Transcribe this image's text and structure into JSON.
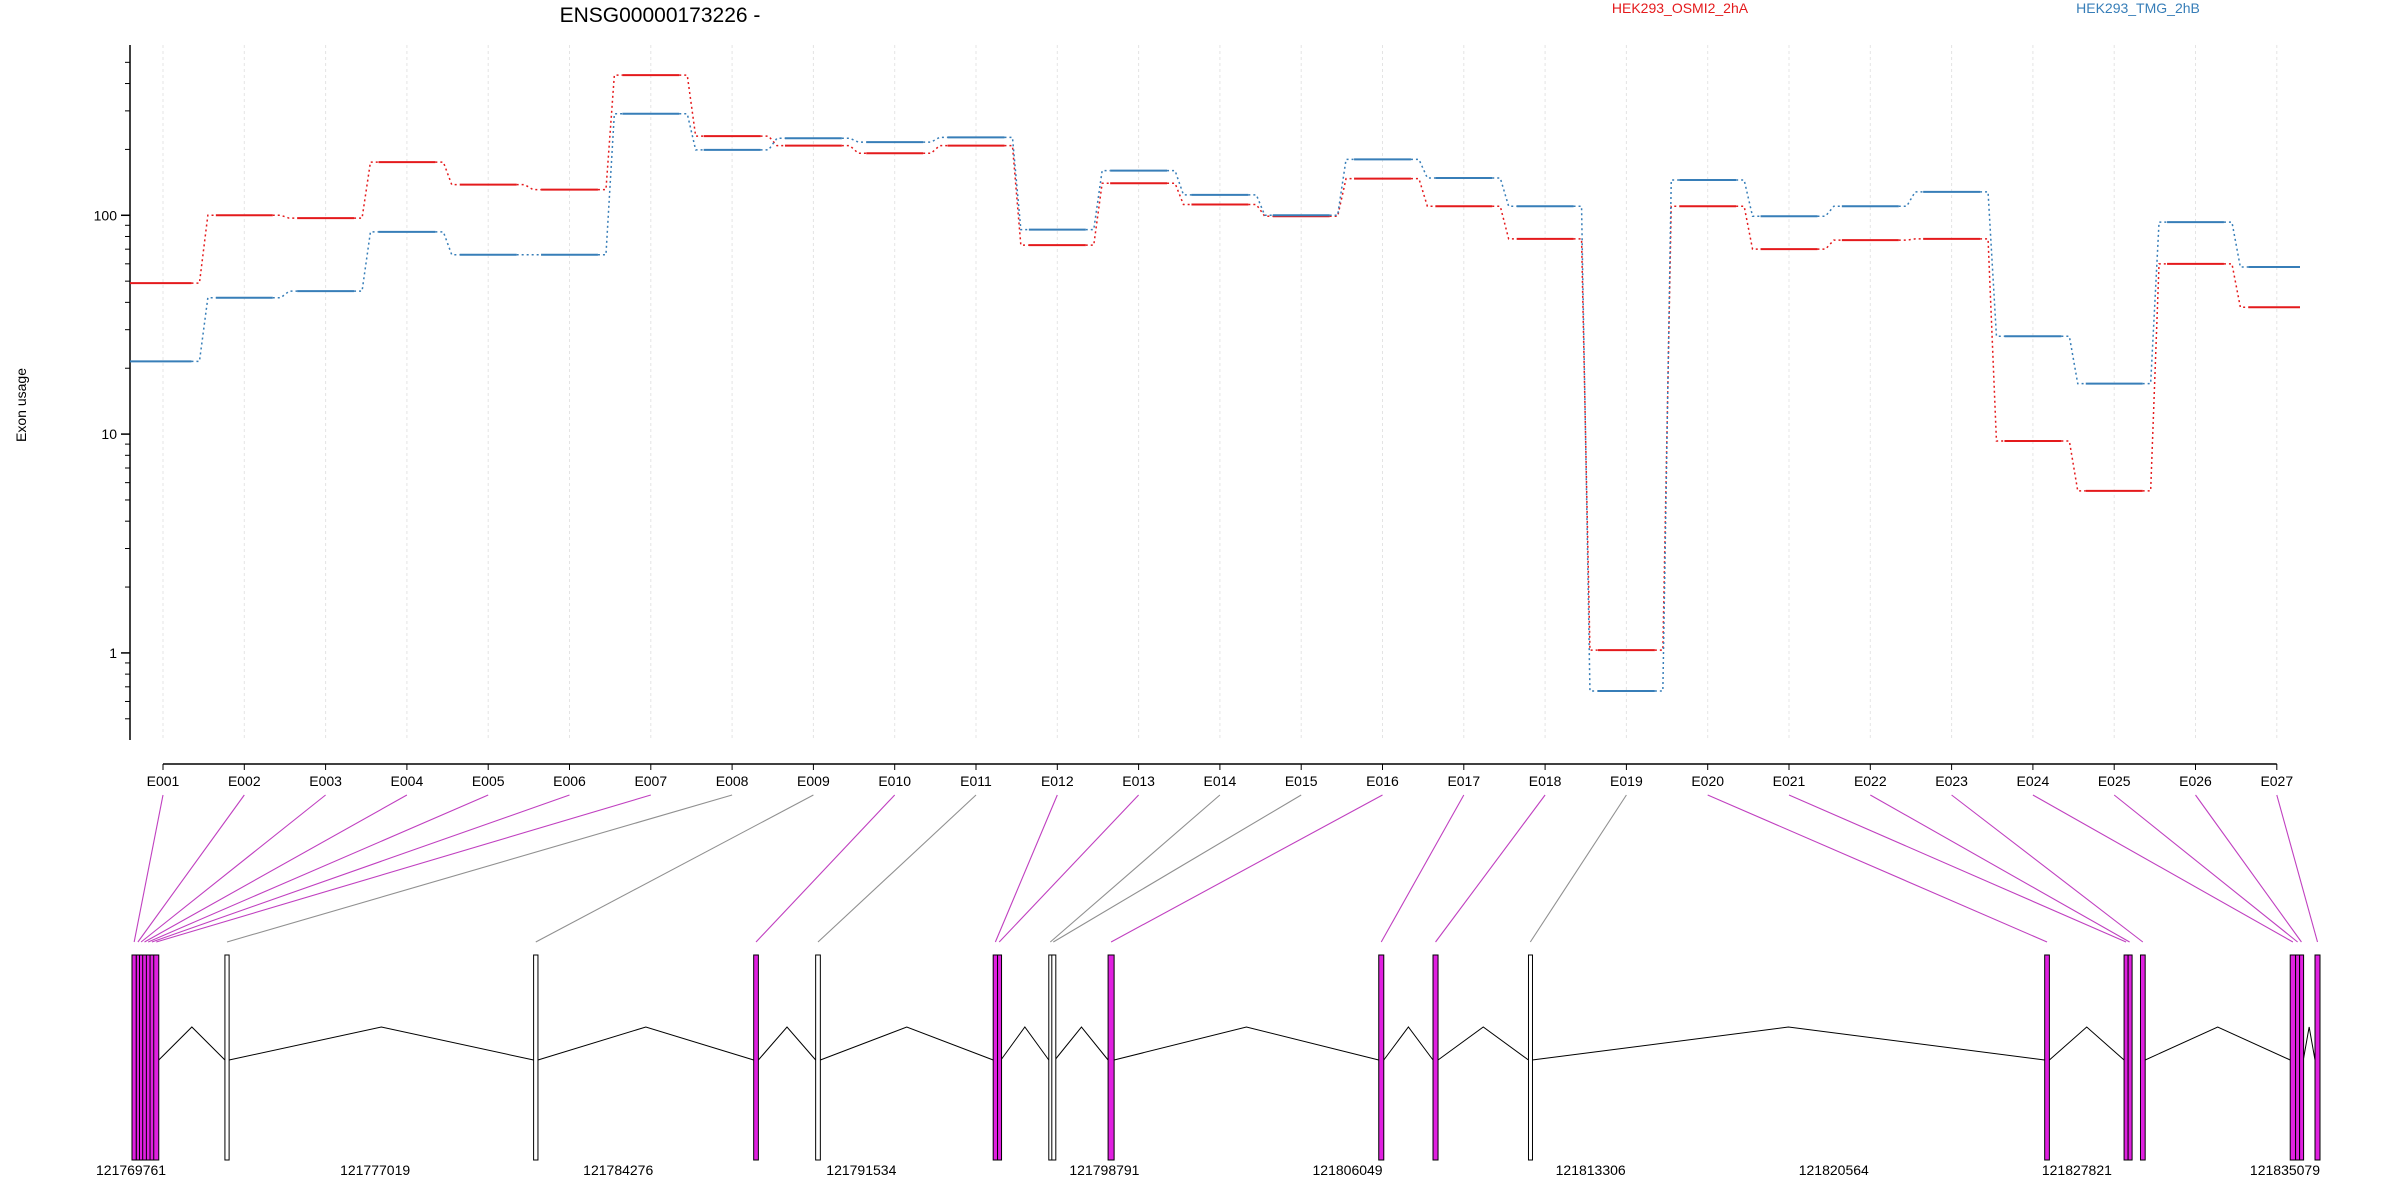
{
  "title": "ENSG00000173226 -",
  "ylabel": "Exon usage",
  "legend": [
    {
      "name": "HEK293_OSMI2_2hA",
      "color": "#e41a1c"
    },
    {
      "name": "HEK293_TMG_2hB",
      "color": "#377eb8"
    }
  ],
  "colors": {
    "axis": "#000000",
    "grid": "#e4e4e4",
    "connector_highlight": "#c040c0",
    "connector_plain": "#909090",
    "exon_highlight": "#e020e0",
    "exon_plain": "#ffffff",
    "intron": "#000000"
  },
  "chart_data": {
    "type": "line",
    "y_scale": "log",
    "ylim": [
      0.4,
      600
    ],
    "y_ticks": [
      {
        "value": 1,
        "label": "1"
      },
      {
        "value": 10,
        "label": "10"
      },
      {
        "value": 100,
        "label": "100"
      }
    ],
    "y_minor_ticks": [
      0.5,
      0.6,
      0.7,
      0.8,
      0.9,
      2,
      3,
      4,
      5,
      6,
      7,
      8,
      9,
      20,
      30,
      40,
      50,
      60,
      70,
      80,
      90,
      200,
      300,
      400,
      500
    ],
    "categories": [
      "E001",
      "E002",
      "E003",
      "E004",
      "E005",
      "E006",
      "E007",
      "E008",
      "E009",
      "E010",
      "E011",
      "E012",
      "E013",
      "E014",
      "E015",
      "E016",
      "E017",
      "E018",
      "E019",
      "E020",
      "E021",
      "E022",
      "E023",
      "E024",
      "E025",
      "E026",
      "E027"
    ],
    "series": [
      {
        "name": "HEK293_OSMI2_2hA",
        "values": [
          49,
          100,
          97,
          175,
          138,
          131,
          437,
          230,
          208,
          192,
          208,
          73,
          140,
          112,
          99,
          147,
          110,
          78,
          1.03,
          110,
          70,
          77,
          78,
          9.3,
          5.5,
          60,
          38
        ]
      },
      {
        "name": "HEK293_TMG_2hB",
        "values": [
          21.5,
          42,
          45,
          84,
          66,
          66,
          291,
          199,
          225,
          216,
          227,
          86,
          160,
          124,
          100,
          180,
          148,
          110,
          0.67,
          145,
          99,
          110,
          128,
          28,
          17,
          93,
          58
        ]
      }
    ]
  },
  "gene_model": {
    "coordinate_labels": [
      "121769761",
      "121777019",
      "121784276",
      "121791534",
      "121798791",
      "121806049",
      "121813306",
      "121820564",
      "121827821",
      "121835079"
    ],
    "genomic_range": [
      121769761,
      121835079
    ],
    "exons": [
      {
        "id": "E001",
        "start": 121769761,
        "end": 121769890,
        "highlight": true
      },
      {
        "id": "E002",
        "start": 121769890,
        "end": 121769985,
        "highlight": true
      },
      {
        "id": "E003",
        "start": 121769985,
        "end": 121770080,
        "highlight": true
      },
      {
        "id": "E004",
        "start": 121770080,
        "end": 121770190,
        "highlight": true
      },
      {
        "id": "E005",
        "start": 121770190,
        "end": 121770300,
        "highlight": true
      },
      {
        "id": "E006",
        "start": 121770300,
        "end": 121770410,
        "highlight": true
      },
      {
        "id": "E007",
        "start": 121770410,
        "end": 121770560,
        "highlight": true
      },
      {
        "id": "E008",
        "start": 121772535,
        "end": 121772660,
        "highlight": false
      },
      {
        "id": "E009",
        "start": 121781750,
        "end": 121781880,
        "highlight": false
      },
      {
        "id": "E010",
        "start": 121788320,
        "end": 121788460,
        "highlight": true
      },
      {
        "id": "E011",
        "start": 121790170,
        "end": 121790310,
        "highlight": false
      },
      {
        "id": "E012",
        "start": 121795470,
        "end": 121795600,
        "highlight": true
      },
      {
        "id": "E013",
        "start": 121795600,
        "end": 121795700,
        "highlight": true
      },
      {
        "id": "E014",
        "start": 121797130,
        "end": 121797220,
        "highlight": false
      },
      {
        "id": "E015",
        "start": 121797220,
        "end": 121797310,
        "highlight": false
      },
      {
        "id": "E016",
        "start": 121798900,
        "end": 121799080,
        "highlight": true
      },
      {
        "id": "E017",
        "start": 121806980,
        "end": 121807130,
        "highlight": true
      },
      {
        "id": "E018",
        "start": 121808600,
        "end": 121808750,
        "highlight": true
      },
      {
        "id": "E019",
        "start": 121811450,
        "end": 121811560,
        "highlight": false
      },
      {
        "id": "E020",
        "start": 121826860,
        "end": 121827000,
        "highlight": true
      },
      {
        "id": "E021",
        "start": 121829230,
        "end": 121829350,
        "highlight": true
      },
      {
        "id": "E022",
        "start": 121829350,
        "end": 121829440,
        "highlight": true
      },
      {
        "id": "E023",
        "start": 121829720,
        "end": 121829860,
        "highlight": true
      },
      {
        "id": "E024",
        "start": 121834190,
        "end": 121834350,
        "highlight": true
      },
      {
        "id": "E025",
        "start": 121834350,
        "end": 121834470,
        "highlight": true
      },
      {
        "id": "E026",
        "start": 121834470,
        "end": 121834580,
        "highlight": true
      },
      {
        "id": "E027",
        "start": 121834930,
        "end": 121835079,
        "highlight": true
      }
    ],
    "introns": [
      [
        121770560,
        121772535
      ],
      [
        121772660,
        121781750
      ],
      [
        121781880,
        121788320
      ],
      [
        121788460,
        121790170
      ],
      [
        121790310,
        121795470
      ],
      [
        121795700,
        121797130
      ],
      [
        121797310,
        121798900
      ],
      [
        121799080,
        121806980
      ],
      [
        121807130,
        121808600
      ],
      [
        121808750,
        121811450
      ],
      [
        121811560,
        121826860
      ],
      [
        121827000,
        121829230
      ],
      [
        121829860,
        121834190
      ],
      [
        121834580,
        121834930
      ]
    ]
  }
}
